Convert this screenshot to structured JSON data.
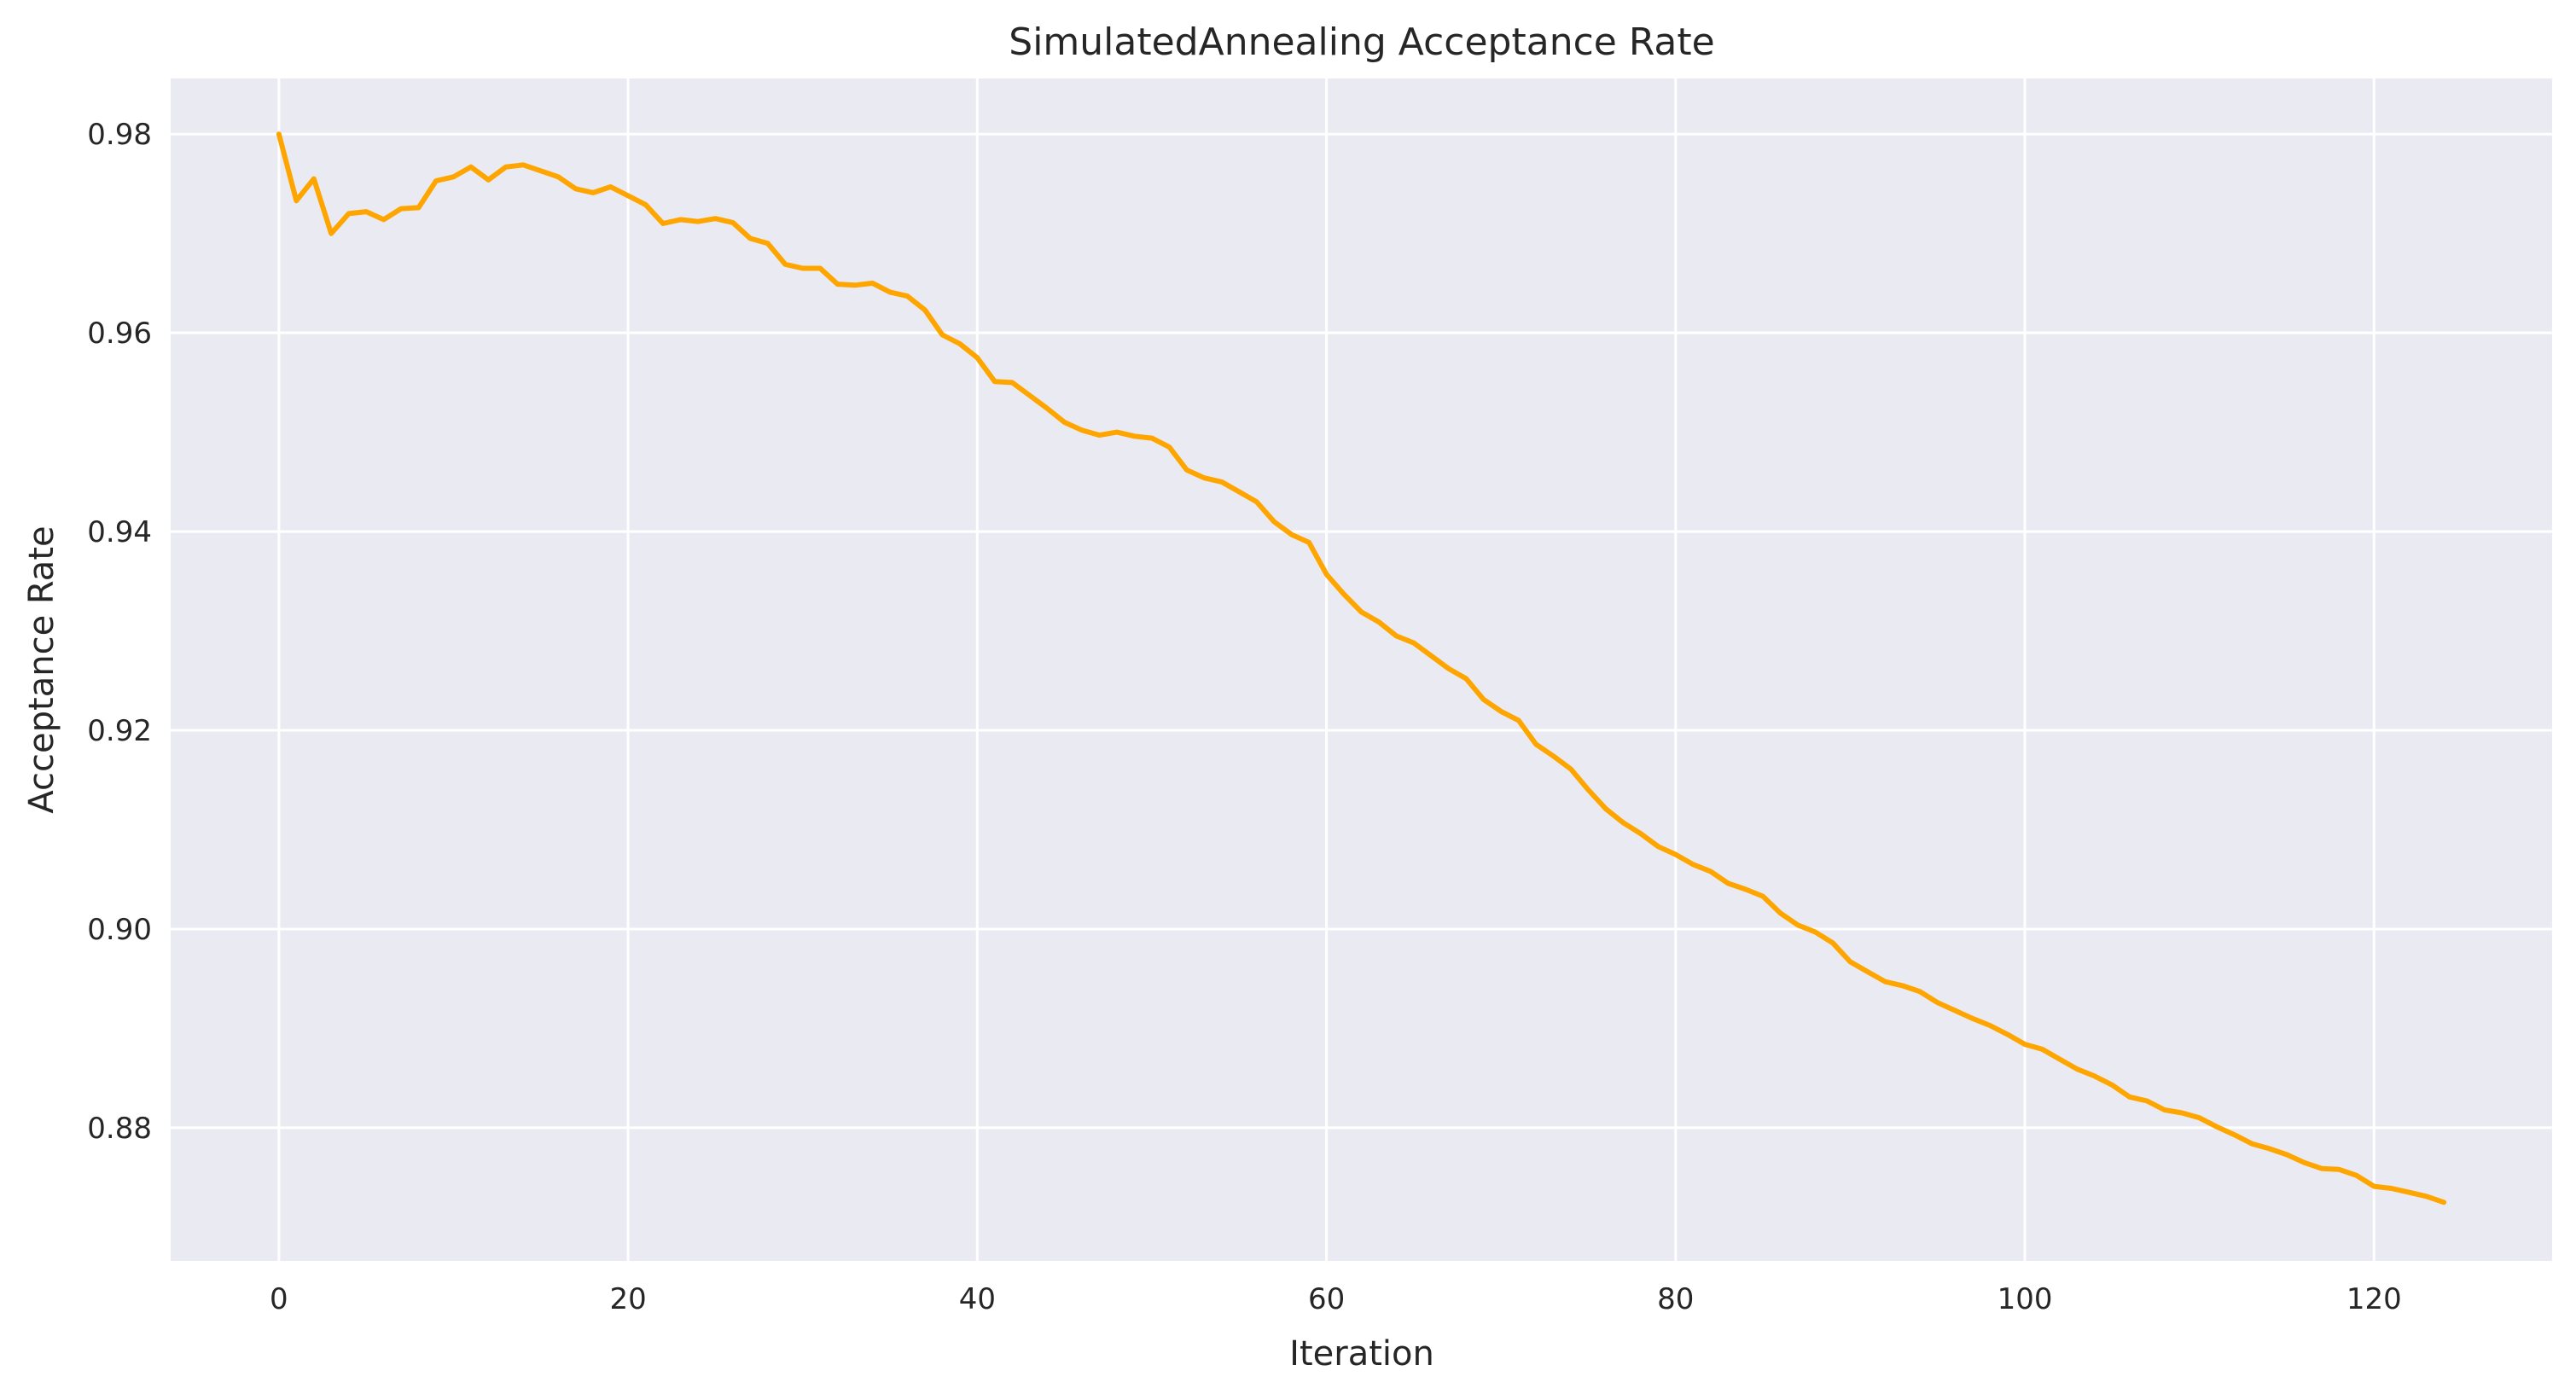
{
  "chart_data": {
    "type": "line",
    "title": "SimulatedAnnealing Acceptance Rate",
    "xlabel": "Iteration",
    "ylabel": "Acceptance Rate",
    "xlim": [
      -6.2,
      130.2
    ],
    "ylim": [
      0.8666,
      0.9856
    ],
    "xticks": [
      0,
      20,
      40,
      60,
      80,
      100,
      120
    ],
    "xtick_labels": [
      "0",
      "20",
      "40",
      "60",
      "80",
      "100",
      "120"
    ],
    "yticks": [
      0.88,
      0.9,
      0.92,
      0.94,
      0.96,
      0.98
    ],
    "ytick_labels": [
      "0.88",
      "0.90",
      "0.92",
      "0.94",
      "0.96",
      "0.98"
    ],
    "grid": true,
    "background_color": "#eaeaf2",
    "series": [
      {
        "color": "#ffa500",
        "x": [
          0,
          1,
          2,
          3,
          4,
          5,
          6,
          7,
          8,
          9,
          10,
          11,
          12,
          13,
          14,
          15,
          16,
          17,
          18,
          19,
          20,
          21,
          22,
          23,
          24,
          25,
          26,
          27,
          28,
          29,
          30,
          31,
          32,
          33,
          34,
          35,
          36,
          37,
          38,
          39,
          40,
          41,
          42,
          43,
          44,
          45,
          46,
          47,
          48,
          49,
          50,
          51,
          52,
          53,
          54,
          55,
          56,
          57,
          58,
          59,
          60,
          61,
          62,
          63,
          64,
          65,
          66,
          67,
          68,
          69,
          70,
          71,
          72,
          73,
          74,
          75,
          76,
          77,
          78,
          79,
          80,
          81,
          82,
          83,
          84,
          85,
          86,
          87,
          88,
          89,
          90,
          91,
          92,
          93,
          94,
          95,
          96,
          97,
          98,
          99,
          100,
          101,
          102,
          103,
          104,
          105,
          106,
          107,
          108,
          109,
          110,
          111,
          112,
          113,
          114,
          115,
          116,
          117,
          118,
          119,
          120,
          121,
          122,
          123,
          124
        ],
        "y": [
          0.98,
          0.9733,
          0.9755,
          0.97,
          0.972,
          0.9722,
          0.9714,
          0.9725,
          0.9726,
          0.9753,
          0.9757,
          0.9767,
          0.9754,
          0.9767,
          0.9769,
          0.9763,
          0.9757,
          0.9745,
          0.9741,
          0.9747,
          0.9738,
          0.9729,
          0.971,
          0.9714,
          0.9712,
          0.9715,
          0.9711,
          0.9695,
          0.969,
          0.9669,
          0.9665,
          0.9665,
          0.9649,
          0.9648,
          0.965,
          0.9641,
          0.9637,
          0.9623,
          0.9598,
          0.9589,
          0.9575,
          0.9551,
          0.955,
          0.9537,
          0.9524,
          0.951,
          0.9502,
          0.9497,
          0.95,
          0.9496,
          0.9494,
          0.9485,
          0.9462,
          0.9454,
          0.945,
          0.944,
          0.943,
          0.941,
          0.9397,
          0.9389,
          0.9357,
          0.9337,
          0.9319,
          0.9309,
          0.9295,
          0.9288,
          0.9275,
          0.9262,
          0.9252,
          0.9231,
          0.9219,
          0.921,
          0.9186,
          0.9174,
          0.9161,
          0.914,
          0.9121,
          0.9107,
          0.9096,
          0.9083,
          0.9075,
          0.9065,
          0.9058,
          0.9046,
          0.904,
          0.9033,
          0.9016,
          0.9004,
          0.8997,
          0.8986,
          0.8967,
          0.8957,
          0.8947,
          0.8943,
          0.8937,
          0.8926,
          0.8918,
          0.891,
          0.8903,
          0.8894,
          0.8884,
          0.8879,
          0.8869,
          0.8859,
          0.8852,
          0.8843,
          0.8831,
          0.8827,
          0.8818,
          0.8815,
          0.881,
          0.8801,
          0.8793,
          0.8784,
          0.8779,
          0.8773,
          0.8765,
          0.8759,
          0.8758,
          0.8752,
          0.8741,
          0.8739,
          0.8735,
          0.8731,
          0.8725
        ]
      }
    ]
  }
}
